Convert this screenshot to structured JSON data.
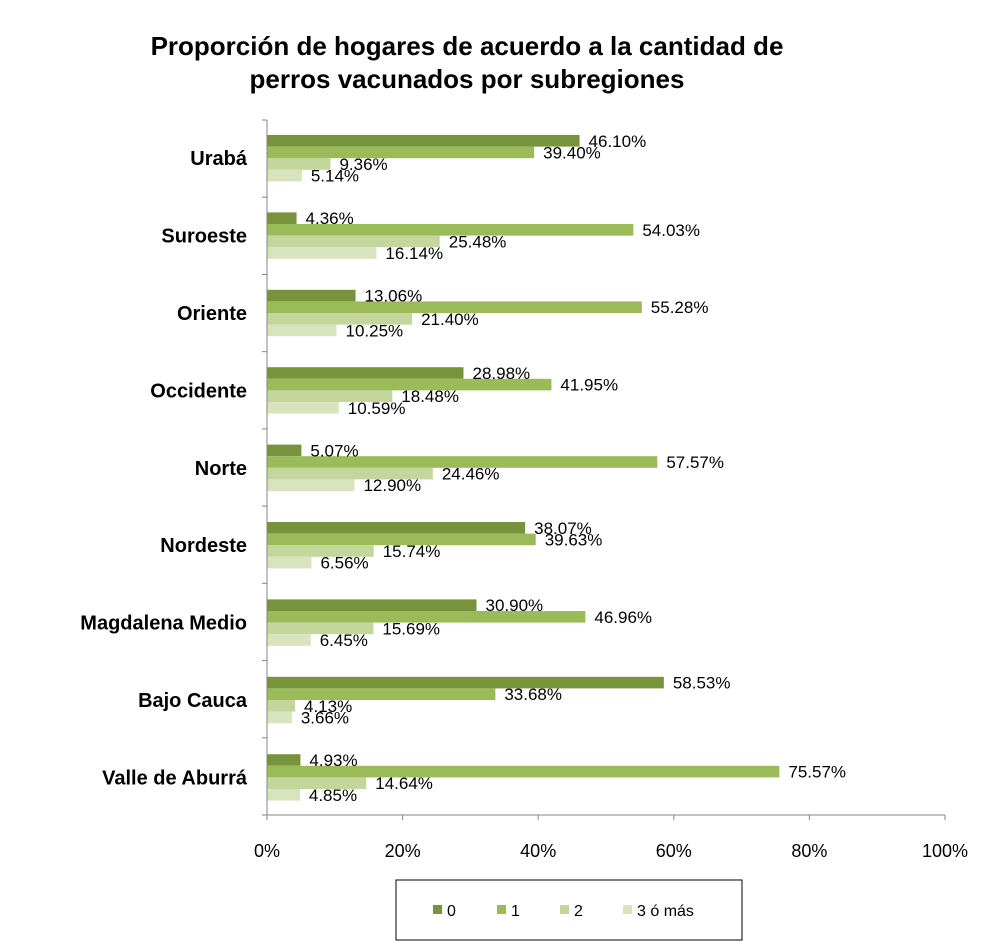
{
  "chart_data": {
    "type": "bar",
    "orientation": "horizontal",
    "title_lines": [
      "Proporción de hogares de acuerdo a la cantidad de",
      "perros vacunados por subregiones"
    ],
    "categories": [
      "Urabá",
      "Suroeste",
      "Oriente",
      "Occidente",
      "Norte",
      "Nordeste",
      "Magdalena Medio",
      "Bajo Cauca",
      "Valle de Aburrá"
    ],
    "series": [
      {
        "name": "0",
        "color": "#77933c",
        "values": [
          46.1,
          4.36,
          13.06,
          28.98,
          5.07,
          38.07,
          30.9,
          58.53,
          4.93
        ],
        "labels": [
          "46.10%",
          "4.36%",
          "13.06%",
          "28.98%",
          "5.07%",
          "38.07%",
          "30.90%",
          "58.53%",
          "4.93%"
        ]
      },
      {
        "name": "1",
        "color": "#9bbb59",
        "values": [
          39.4,
          54.03,
          55.28,
          41.95,
          57.57,
          39.63,
          46.96,
          33.68,
          75.57
        ],
        "labels": [
          "39.40%",
          "54.03%",
          "55.28%",
          "41.95%",
          "57.57%",
          "39.63%",
          "46.96%",
          "33.68%",
          "75.57%"
        ]
      },
      {
        "name": "2",
        "color": "#c3d69b",
        "values": [
          9.36,
          25.48,
          21.4,
          18.48,
          24.46,
          15.74,
          15.69,
          4.13,
          14.64
        ],
        "labels": [
          "9.36%",
          "25.48%",
          "21.40%",
          "18.48%",
          "24.46%",
          "15.74%",
          "15.69%",
          "4.13%",
          "14.64%"
        ]
      },
      {
        "name": "3 ó más",
        "color": "#d7e4bd",
        "values": [
          5.14,
          16.14,
          10.25,
          10.59,
          12.9,
          6.56,
          6.45,
          3.66,
          4.85
        ],
        "labels": [
          "5.14%",
          "16.14%",
          "10.25%",
          "10.59%",
          "12.90%",
          "6.56%",
          "6.45%",
          "3.66%",
          "4.85%"
        ]
      }
    ],
    "x_ticks": [
      "0%",
      "20%",
      "40%",
      "60%",
      "80%",
      "100%"
    ],
    "xlim": [
      0,
      100
    ],
    "grid": false,
    "legend_position": "bottom"
  }
}
